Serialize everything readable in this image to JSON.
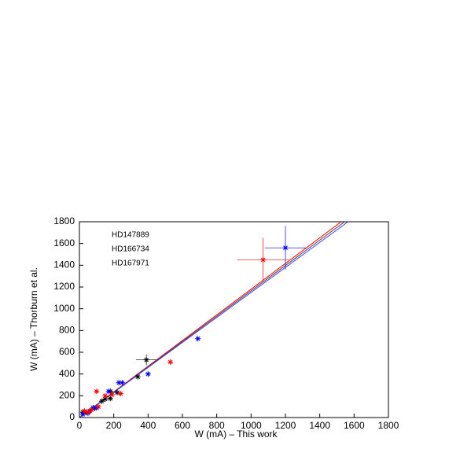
{
  "chart_data": {
    "type": "scatter",
    "xlabel": "W (mA) – This work",
    "ylabel": "W (mA) – Thorburn et al.",
    "xlim": [
      0,
      1800
    ],
    "ylim": [
      0,
      1800
    ],
    "xticks": [
      0,
      200,
      400,
      600,
      800,
      1000,
      1200,
      1400,
      1600,
      1800
    ],
    "yticks": [
      0,
      200,
      400,
      600,
      800,
      1000,
      1200,
      1400,
      1600,
      1800
    ],
    "series": [
      {
        "name": "HD147889",
        "color": "#000000",
        "x": [
          20,
          40,
          60,
          80,
          90,
          130,
          150,
          180,
          180,
          220,
          340,
          390
        ],
        "values": [
          50,
          45,
          60,
          90,
          85,
          150,
          170,
          175,
          240,
          230,
          375,
          530
        ],
        "xerr": [
          null,
          null,
          null,
          null,
          null,
          null,
          null,
          null,
          null,
          null,
          null,
          60
        ],
        "yerr": [
          null,
          null,
          null,
          null,
          null,
          null,
          null,
          null,
          null,
          null,
          null,
          50
        ]
      },
      {
        "name": "HD166734",
        "color": "#0000ff",
        "x": [
          20,
          50,
          80,
          100,
          170,
          230,
          250,
          400,
          690,
          1200
        ],
        "values": [
          30,
          40,
          90,
          90,
          240,
          320,
          320,
          400,
          725,
          1560
        ],
        "xerr": [
          null,
          null,
          null,
          null,
          null,
          null,
          null,
          null,
          null,
          120
        ],
        "yerr": [
          null,
          null,
          null,
          null,
          null,
          null,
          null,
          null,
          null,
          200
        ]
      },
      {
        "name": "HD167971",
        "color": "#ff0000",
        "x": [
          30,
          50,
          70,
          100,
          110,
          150,
          190,
          240,
          530,
          1070
        ],
        "values": [
          60,
          50,
          70,
          240,
          100,
          200,
          210,
          220,
          510,
          1450
        ],
        "xerr": [
          null,
          null,
          null,
          null,
          null,
          null,
          null,
          null,
          null,
          150
        ],
        "yerr": [
          null,
          null,
          null,
          null,
          null,
          null,
          null,
          null,
          null,
          200
        ]
      }
    ],
    "lines": [
      {
        "color": "#ff0000",
        "x": [
          0,
          1525
        ],
        "values": [
          0,
          1800
        ]
      },
      {
        "color": "#404040",
        "x": [
          0,
          1545
        ],
        "values": [
          0,
          1800
        ]
      },
      {
        "color": "#4040ff",
        "x": [
          0,
          1565
        ],
        "values": [
          0,
          1800
        ]
      }
    ]
  }
}
